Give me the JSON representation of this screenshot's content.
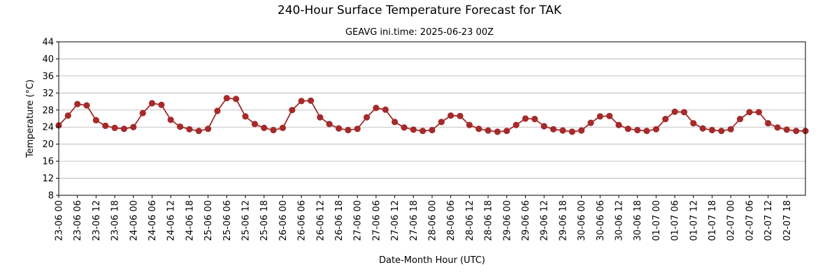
{
  "chart_data": {
    "type": "line",
    "title": "240-Hour Surface Temperature Forecast for TAK",
    "subtitle": "GEAVG ini.time: 2025-06-23 00Z",
    "xlabel": "Date-Month Hour (UTC)",
    "ylabel": "Temperature (°C)",
    "ylim": [
      8,
      44
    ],
    "yticks": [
      8,
      12,
      16,
      20,
      24,
      28,
      32,
      36,
      40,
      44
    ],
    "grid": "horizontal",
    "x_tick_labels": [
      "23-06 00",
      "23-06 06",
      "23-06 12",
      "23-06 18",
      "24-06 00",
      "24-06 06",
      "24-06 12",
      "24-06 18",
      "25-06 00",
      "25-06 06",
      "25-06 12",
      "25-06 18",
      "26-06 00",
      "26-06 06",
      "26-06 12",
      "26-06 18",
      "27-06 00",
      "27-06 06",
      "27-06 12",
      "27-06 18",
      "28-06 00",
      "28-06 06",
      "28-06 12",
      "28-06 18",
      "29-06 00",
      "29-06 06",
      "29-06 12",
      "29-06 18",
      "30-06 00",
      "30-06 06",
      "30-06 12",
      "30-06 18",
      "01-07 00",
      "01-07 06",
      "01-07 12",
      "01-07 18",
      "02-07 00",
      "02-07 06",
      "02-07 12",
      "02-07 18"
    ],
    "series": [
      {
        "color": "#a52a2a",
        "x": [
          "2025-06-23 00:00",
          "2025-06-23 03:00",
          "2025-06-23 06:00",
          "2025-06-23 09:00",
          "2025-06-23 12:00",
          "2025-06-23 15:00",
          "2025-06-23 18:00",
          "2025-06-23 21:00",
          "2025-06-24 00:00",
          "2025-06-24 03:00",
          "2025-06-24 06:00",
          "2025-06-24 09:00",
          "2025-06-24 12:00",
          "2025-06-24 15:00",
          "2025-06-24 18:00",
          "2025-06-24 21:00",
          "2025-06-25 00:00",
          "2025-06-25 03:00",
          "2025-06-25 06:00",
          "2025-06-25 09:00",
          "2025-06-25 12:00",
          "2025-06-25 15:00",
          "2025-06-25 18:00",
          "2025-06-25 21:00",
          "2025-06-26 00:00",
          "2025-06-26 03:00",
          "2025-06-26 06:00",
          "2025-06-26 09:00",
          "2025-06-26 12:00",
          "2025-06-26 15:00",
          "2025-06-26 18:00",
          "2025-06-26 21:00",
          "2025-06-27 00:00",
          "2025-06-27 03:00",
          "2025-06-27 06:00",
          "2025-06-27 09:00",
          "2025-06-27 12:00",
          "2025-06-27 15:00",
          "2025-06-27 18:00",
          "2025-06-27 21:00",
          "2025-06-28 00:00",
          "2025-06-28 03:00",
          "2025-06-28 06:00",
          "2025-06-28 09:00",
          "2025-06-28 12:00",
          "2025-06-28 15:00",
          "2025-06-28 18:00",
          "2025-06-28 21:00",
          "2025-06-29 00:00",
          "2025-06-29 03:00",
          "2025-06-29 06:00",
          "2025-06-29 09:00",
          "2025-06-29 12:00",
          "2025-06-29 15:00",
          "2025-06-29 18:00",
          "2025-06-29 21:00",
          "2025-06-30 00:00",
          "2025-06-30 03:00",
          "2025-06-30 06:00",
          "2025-06-30 09:00",
          "2025-06-30 12:00",
          "2025-06-30 15:00",
          "2025-06-30 18:00",
          "2025-06-30 21:00",
          "2025-07-01 00:00",
          "2025-07-01 03:00",
          "2025-07-01 06:00",
          "2025-07-01 09:00",
          "2025-07-01 12:00",
          "2025-07-01 15:00",
          "2025-07-01 18:00",
          "2025-07-01 21:00",
          "2025-07-02 00:00",
          "2025-07-02 03:00",
          "2025-07-02 06:00",
          "2025-07-02 09:00",
          "2025-07-02 12:00",
          "2025-07-02 15:00",
          "2025-07-02 18:00",
          "2025-07-02 21:00",
          "2025-07-03 00:00"
        ],
        "values": [
          24.4,
          26.7,
          29.4,
          29.1,
          25.6,
          24.3,
          23.8,
          23.6,
          24.0,
          27.3,
          29.6,
          29.2,
          25.7,
          24.1,
          23.5,
          23.1,
          23.6,
          27.8,
          30.8,
          30.6,
          26.5,
          24.7,
          23.8,
          23.3,
          23.8,
          28.0,
          30.1,
          30.2,
          26.3,
          24.7,
          23.7,
          23.3,
          23.6,
          26.3,
          28.5,
          28.1,
          25.2,
          23.9,
          23.4,
          23.1,
          23.3,
          25.2,
          26.7,
          26.6,
          24.5,
          23.6,
          23.2,
          22.9,
          23.1,
          24.5,
          26.0,
          25.9,
          24.2,
          23.5,
          23.2,
          22.9,
          23.2,
          25.0,
          26.5,
          26.6,
          24.5,
          23.6,
          23.3,
          23.1,
          23.5,
          25.9,
          27.6,
          27.5,
          24.9,
          23.7,
          23.3,
          23.1,
          23.5,
          25.9,
          27.5,
          27.5,
          24.9,
          23.9,
          23.4,
          23.1,
          23.1
        ]
      }
    ]
  }
}
